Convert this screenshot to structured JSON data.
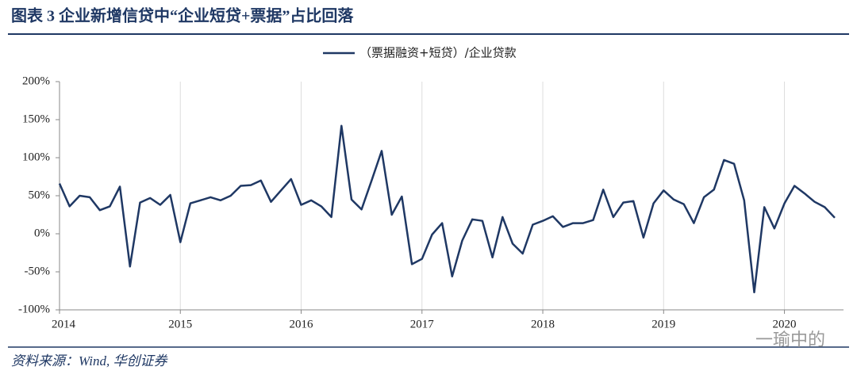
{
  "chart_data": {
    "type": "line",
    "title": "图表 3   企业新增信贷中“企业短贷+票据”占比回落",
    "source": "资料来源：Wind, 华创证券",
    "watermark": "一瑜中的",
    "categories": [
      "2014",
      null,
      null,
      null,
      null,
      null,
      null,
      null,
      null,
      null,
      null,
      null,
      "2015",
      null,
      null,
      null,
      null,
      null,
      null,
      null,
      null,
      null,
      null,
      null,
      "2016",
      null,
      null,
      null,
      null,
      null,
      null,
      null,
      null,
      null,
      null,
      null,
      "2017",
      null,
      null,
      null,
      null,
      null,
      null,
      null,
      null,
      null,
      null,
      null,
      "2018",
      null,
      null,
      null,
      null,
      null,
      null,
      null,
      null,
      null,
      null,
      null,
      "2019",
      null,
      null,
      null,
      null,
      null,
      null,
      null,
      null,
      null,
      null,
      null,
      "2020",
      null,
      null,
      null,
      null,
      null
    ],
    "series": [
      {
        "name": "（票据融资+短贷）/企业贷款",
        "color": "#1f3864",
        "values": [
          66,
          36,
          50,
          48,
          31,
          36,
          62,
          -43,
          41,
          47,
          38,
          51,
          -11,
          40,
          44,
          48,
          44,
          50,
          63,
          64,
          70,
          42,
          57,
          72,
          38,
          44,
          36,
          22,
          142,
          45,
          32,
          70,
          109,
          25,
          49,
          -40,
          -33,
          -1,
          14,
          -56,
          -9,
          19,
          17,
          -31,
          22,
          -13,
          -26,
          12,
          17,
          23,
          9,
          14,
          14,
          18,
          58,
          22,
          41,
          43,
          -5,
          40,
          57,
          45,
          39,
          14,
          48,
          58,
          97,
          92,
          44,
          -77,
          35,
          7,
          40,
          63,
          53,
          42,
          35,
          21
        ]
      }
    ],
    "ylim": [
      -100,
      200
    ],
    "yticks": [
      {
        "value": -100,
        "label": "-100%"
      },
      {
        "value": -50,
        "label": "-50%"
      },
      {
        "value": 0,
        "label": "0%"
      },
      {
        "value": 50,
        "label": "50%"
      },
      {
        "value": 100,
        "label": "100%"
      },
      {
        "value": 150,
        "label": "150%"
      },
      {
        "value": 200,
        "label": "200%"
      }
    ],
    "grid": true,
    "legend": "top"
  }
}
